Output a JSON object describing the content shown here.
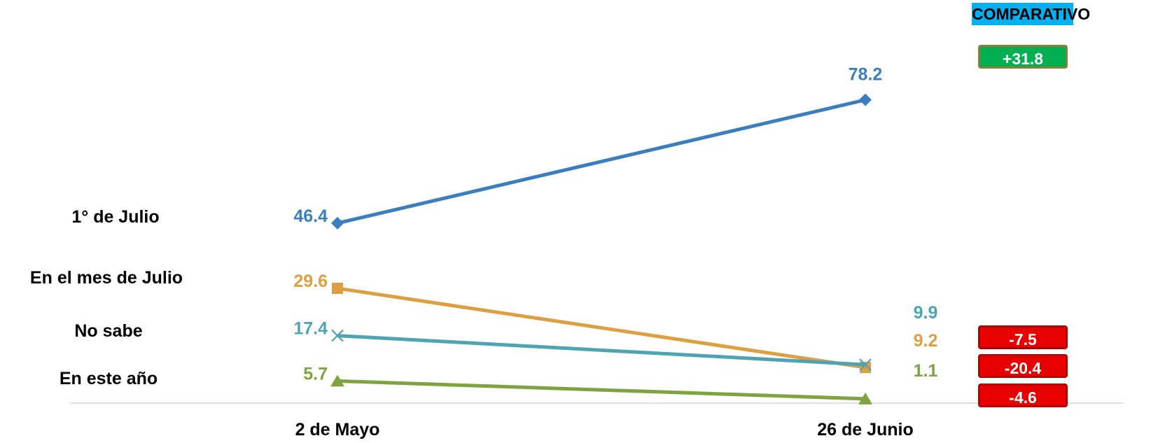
{
  "chart_data": {
    "type": "line",
    "categories": [
      "2 de Mayo",
      "26 de Junio"
    ],
    "series": [
      {
        "name": "1° de Julio",
        "values": [
          46.4,
          78.2
        ],
        "color": "#3a7ebf",
        "marker": "diamond"
      },
      {
        "name": "En el mes de Julio",
        "values": [
          29.6,
          9.2
        ],
        "color": "#dca043",
        "marker": "square"
      },
      {
        "name": "No sabe",
        "values": [
          17.4,
          9.9
        ],
        "color": "#4fa3b3",
        "marker": "x"
      },
      {
        "name": "En este año",
        "values": [
          5.7,
          1.1
        ],
        "color": "#7fa43f",
        "marker": "triangle"
      }
    ],
    "data_labels": {
      "left": [
        "46.4",
        "29.6",
        "17.4",
        "5.7"
      ],
      "right": [
        "78.2",
        "9.2",
        "9.9",
        "1.1"
      ]
    },
    "ylim": [
      0,
      85
    ],
    "grid": false,
    "title": "",
    "xlabel": "",
    "ylabel": ""
  },
  "comparativo": {
    "title": "COMPARATIVO",
    "items": [
      {
        "label": "+31.8",
        "color": "#00b050",
        "border": "#8b7d3a"
      },
      {
        "label": "-7.5",
        "color": "#e60000",
        "border": "#b20000"
      },
      {
        "label": "-20.4",
        "color": "#e60000",
        "border": "#b20000"
      },
      {
        "label": "-4.6",
        "color": "#e60000",
        "border": "#b20000"
      }
    ]
  }
}
